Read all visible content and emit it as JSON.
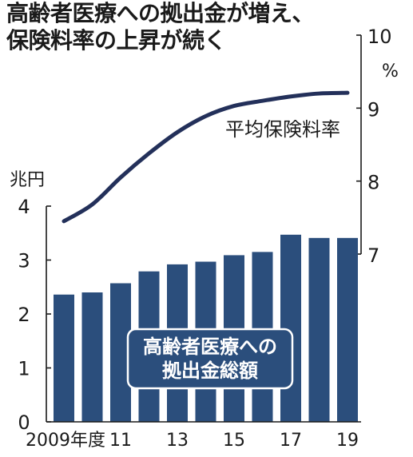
{
  "title": {
    "line1": "高齢者医療への拠出金が増え、",
    "line2": "保険料率の上昇が続く"
  },
  "colors": {
    "bar": "#2b4e7c",
    "line": "#23305a",
    "text": "#1a1a1a",
    "background": "#ffffff"
  },
  "chart_data": {
    "type": "bar+line",
    "categories": [
      "2009",
      "2010",
      "2011",
      "2012",
      "2013",
      "2014",
      "2015",
      "2016",
      "2017",
      "2018",
      "2019"
    ],
    "x_tick_labels": [
      "2009年度",
      "",
      "11",
      "",
      "13",
      "",
      "15",
      "",
      "17",
      "",
      "19"
    ],
    "series": [
      {
        "name": "高齢者医療への拠出金総額",
        "label_lines": [
          "高齢者医療への",
          "拠出金総額"
        ],
        "type": "bar",
        "axis": "left",
        "values": [
          2.36,
          2.4,
          2.57,
          2.79,
          2.92,
          2.97,
          3.09,
          3.15,
          3.47,
          3.41,
          3.41
        ]
      },
      {
        "name": "平均保険料率",
        "type": "line",
        "axis": "right",
        "values": [
          7.45,
          7.68,
          8.05,
          8.38,
          8.67,
          8.89,
          9.03,
          9.1,
          9.16,
          9.2,
          9.21
        ]
      }
    ],
    "y_left": {
      "unit_label": "兆円",
      "range": [
        0,
        4
      ],
      "ticks": [
        "0",
        "1",
        "2",
        "3",
        "4"
      ]
    },
    "y_right": {
      "unit_label": "%",
      "range": [
        7,
        10
      ],
      "ticks": [
        "7",
        "8",
        "9",
        "10"
      ]
    },
    "grid": false
  }
}
